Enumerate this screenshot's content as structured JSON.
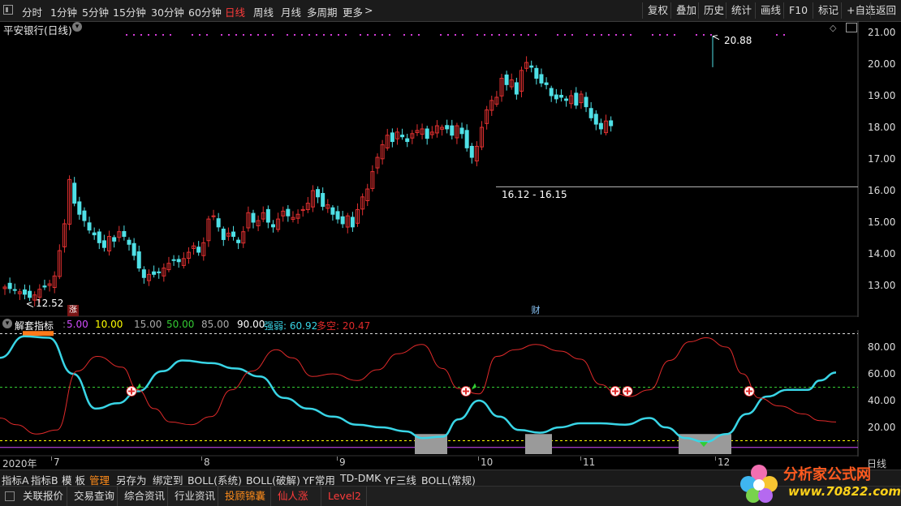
{
  "toolbar": {
    "periods": [
      "分时",
      "1分钟",
      "5分钟",
      "15分钟",
      "30分钟",
      "60分钟",
      "日线",
      "周线",
      "月线",
      "多周期",
      "更多"
    ],
    "active_period": "日线",
    "more_chevron": ">",
    "right_buttons": [
      "复权",
      "叠加",
      "历史",
      "统计",
      "画线",
      "F10",
      "标记",
      "+自选",
      "返回"
    ]
  },
  "stock": {
    "title": "平安银行(日线)"
  },
  "price_axis": {
    "labels": [
      "21.00",
      "20.00",
      "19.00",
      "18.00",
      "17.00",
      "16.00",
      "15.00",
      "14.00",
      "13.00"
    ]
  },
  "annotations": {
    "high": "20.88",
    "low": "12.52",
    "gap": "16.12 - 16.15",
    "zhang_badge": "涨",
    "cai_badge": "财"
  },
  "indicator": {
    "name": "解套指标",
    "values": [
      {
        "text": "5.00",
        "color": "#d24cff"
      },
      {
        "text": "10.00",
        "color": "#ffff00"
      },
      {
        "text": "15.00",
        "color": "#aaaaaa"
      },
      {
        "text": "50.00",
        "color": "#33cc33"
      },
      {
        "text": "85.00",
        "color": "#aaaaaa"
      },
      {
        "text": "90.00",
        "color": "#ffffff"
      },
      {
        "text": "强弱: 60.92",
        "color": "#39d5e6"
      },
      {
        "text": "多空: 20.47",
        "color": "#e02a2a"
      }
    ],
    "axis_labels": [
      "80.00",
      "60.00",
      "40.00",
      "20.00"
    ]
  },
  "date_axis": {
    "labels": [
      "2020年",
      "7",
      "8",
      "9",
      "10",
      "11",
      "12"
    ],
    "right_label": "日线"
  },
  "tabs_row1": [
    "指标A",
    "指标B",
    "模 板",
    "管理",
    "另存为",
    "绑定到",
    "BOLL(系统)",
    "BOLL(破解)",
    "YF常用",
    "TD-DMK",
    "YF三线",
    "BOLL(常规)"
  ],
  "tabs_row1_active": "管理",
  "tabs_row2": [
    {
      "label": "关联报价",
      "style": ""
    },
    {
      "label": "交易查询",
      "style": ""
    },
    {
      "label": "综合资讯",
      "style": ""
    },
    {
      "label": "行业资讯",
      "style": ""
    },
    {
      "label": "投顾锦囊",
      "style": "orange"
    },
    {
      "label": "仙人涨",
      "style": "red"
    },
    {
      "label": "Level2",
      "style": "red"
    }
  ],
  "watermark": {
    "site": "分析家公式网",
    "url": "www.70822.com"
  },
  "colors": {
    "up": "#e03030",
    "down": "#4fe0e6",
    "strength": "#39d5e6",
    "longshort": "#e02a2a"
  }
}
